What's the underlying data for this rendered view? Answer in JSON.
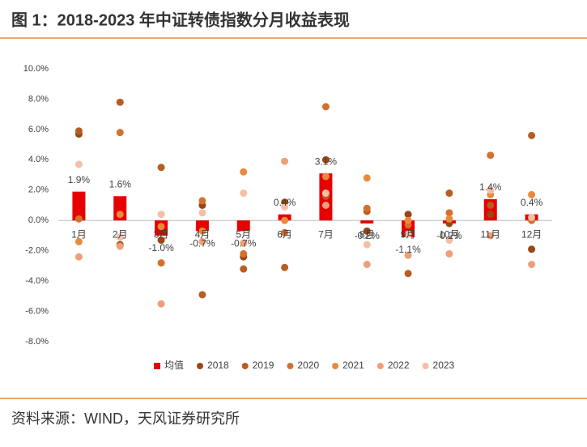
{
  "chart_data": {
    "type": "bar",
    "title": "图 1：2018-2023 年中证转债指数分月收益表现",
    "source": "资料来源：WIND，天风证券研究所",
    "categories": [
      "1月",
      "2月",
      "3月",
      "4月",
      "5月",
      "6月",
      "7月",
      "8月",
      "9月",
      "10月",
      "11月",
      "12月"
    ],
    "name": "均值",
    "color": "#e60000",
    "values": [
      1.9,
      1.6,
      -1.0,
      -0.7,
      -0.7,
      0.4,
      3.1,
      -0.2,
      -1.1,
      -0.2,
      1.4,
      0.4
    ],
    "value_labels": [
      "1.9%",
      "1.6%",
      "-1.0%",
      "-0.7%",
      "-0.7%",
      "0.4%",
      "3.1%",
      "-0.2%",
      "-1.1%",
      "-0.2%",
      "1.4%",
      "0.4%"
    ],
    "series": [
      {
        "name": "2018",
        "color": "#9a4614",
        "values": [
          5.7,
          -1.6,
          -1.3,
          1.0,
          -2.4,
          1.2,
          4.0,
          -0.7,
          0.4,
          -0.2,
          0.4,
          -1.9
        ]
      },
      {
        "name": "2019",
        "color": "#b85c22",
        "values": [
          5.9,
          7.8,
          3.5,
          -4.9,
          -3.2,
          -3.1,
          1.6,
          0.6,
          -3.5,
          1.8,
          1.0,
          5.6
        ]
      },
      {
        "name": "2020",
        "color": "#d4712e",
        "values": [
          0.1,
          5.8,
          -2.8,
          1.3,
          -2.2,
          -0.8,
          7.5,
          0.8,
          -0.3,
          0.5,
          4.3,
          0.0
        ]
      },
      {
        "name": "2021",
        "color": "#ea8a3c",
        "values": [
          -1.4,
          0.4,
          -0.4,
          -0.7,
          3.2,
          0.0,
          2.9,
          2.8,
          0.0,
          0.1,
          1.7,
          1.7
        ]
      },
      {
        "name": "2022",
        "color": "#ee9f7a",
        "values": [
          -2.4,
          -1.7,
          -5.5,
          -1.4,
          -1.5,
          3.9,
          1.0,
          -2.9,
          -2.3,
          -2.2,
          -1.0,
          -2.9
        ]
      },
      {
        "name": "2023",
        "color": "#f5bfa6",
        "values": [
          3.7,
          -1.1,
          0.4,
          0.5,
          1.8,
          0.9,
          1.8,
          -1.6,
          -0.9,
          -1.3,
          2.0,
          0.2
        ]
      }
    ],
    "ylim": [
      -8,
      10
    ],
    "yticks": [
      {
        "value": -8,
        "label": "-8.0%"
      },
      {
        "value": -6,
        "label": "-6.0%"
      },
      {
        "value": -4,
        "label": "-4.0%"
      },
      {
        "value": -2,
        "label": "-2.0%"
      },
      {
        "value": 0,
        "label": "0.0%"
      },
      {
        "value": 2,
        "label": "2.0%"
      },
      {
        "value": 4,
        "label": "4.0%"
      },
      {
        "value": 6,
        "label": "6.0%"
      },
      {
        "value": 8,
        "label": "8.0%"
      },
      {
        "value": 10,
        "label": "10.0%"
      }
    ],
    "grid": false
  }
}
